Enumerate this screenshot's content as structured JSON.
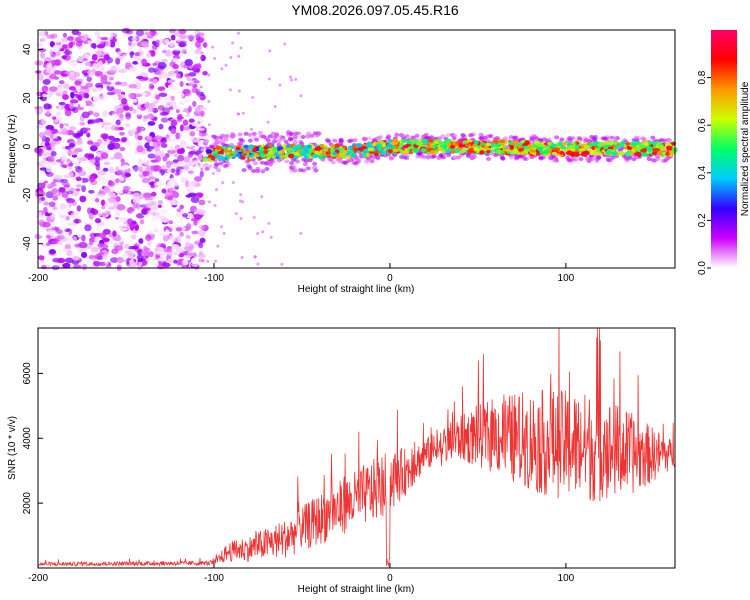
{
  "figure": {
    "title": "YM08.2026.097.05.45.R16"
  },
  "chart_data": [
    {
      "type": "heatmap",
      "title": "",
      "xlabel": "Height of straight line (km)",
      "ylabel": "Frequency (Hz)",
      "xlim": [
        -200,
        162
      ],
      "ylim": [
        -50,
        48
      ],
      "xticks": [
        -200,
        -100,
        0,
        100
      ],
      "yticks": [
        -40,
        -20,
        0,
        20,
        40
      ],
      "colorbar": {
        "label": "Normalized spectral amplitude",
        "range": [
          0,
          1
        ],
        "ticks": [
          0.0,
          0.2,
          0.4,
          0.6,
          0.8
        ],
        "tick_labels": [
          "0.0",
          "0.2",
          "0.4",
          "0.6",
          "0.8"
        ],
        "colormap": [
          "#ffffff",
          "#cc00ff",
          "#3300ff",
          "#00ccff",
          "#00ff66",
          "#ccff00",
          "#ff9900",
          "#ff0000",
          "#ff0066"
        ]
      },
      "regions": [
        {
          "name": "noise",
          "x": [
            -200,
            -105
          ],
          "y": [
            -50,
            48
          ],
          "amplitude": [
            0.0,
            0.2
          ]
        },
        {
          "name": "signal",
          "x": [
            -105,
            162
          ],
          "center_y": [
            [
              -105,
              -3
            ],
            [
              -60,
              -2
            ],
            [
              -20,
              -2
            ],
            [
              0,
              0
            ],
            [
              50,
              0
            ],
            [
              100,
              -1
            ],
            [
              162,
              -1
            ]
          ],
          "half_width_hz": 5,
          "amplitude": [
            0.2,
            0.95
          ]
        }
      ]
    },
    {
      "type": "line",
      "title": "",
      "xlabel": "Height of straight line (km)",
      "ylabel": "SNR (10 * v/v)",
      "xlim": [
        -200,
        162
      ],
      "ylim": [
        0,
        7400
      ],
      "xticks": [
        -200,
        -100,
        0,
        100
      ],
      "yticks": [
        2000,
        4000,
        6000
      ],
      "series": [
        {
          "name": "SNR",
          "color": "#ee3333",
          "envelope": {
            "x": [
              -200,
              -100,
              -92,
              -80,
              -60,
              -40,
              -20,
              -5,
              0,
              10,
              20,
              40,
              60,
              80,
              100,
              120,
              140,
              162
            ],
            "mean": [
              120,
              150,
              500,
              600,
              900,
              1500,
              2100,
              2500,
              2700,
              3000,
              3500,
              4000,
              4100,
              3900,
              3800,
              3700,
              3500,
              3500
            ],
            "noise": [
              60,
              70,
              300,
              400,
              600,
              800,
              900,
              1000,
              1000,
              700,
              500,
              700,
              1200,
              1600,
              1700,
              1700,
              1200,
              400
            ]
          }
        }
      ]
    }
  ]
}
